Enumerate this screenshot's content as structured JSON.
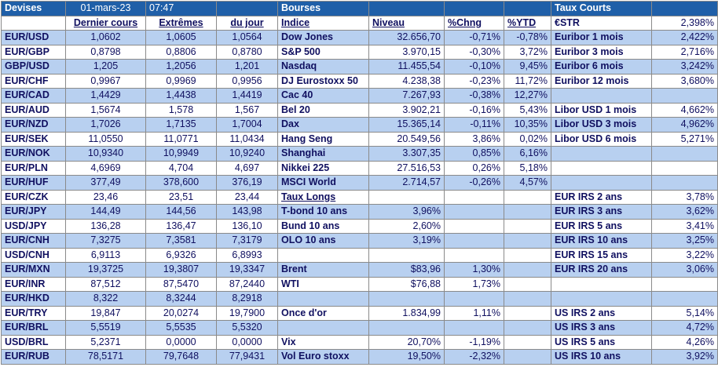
{
  "header": {
    "devises": "Devises",
    "date": "01-mars-23",
    "time": "07:47",
    "bourses": "Bourses",
    "taux_courts": "Taux Courts"
  },
  "columns": {
    "dernier_cours": "Dernier cours",
    "extremes": "Extrêmes",
    "du_jour": "du jour",
    "indice": "Indice",
    "niveau": "Niveau",
    "chng": "%Chng",
    "ytd": "%YTD"
  },
  "estr": {
    "label": "€STR",
    "value": "2,398%"
  },
  "currencies": [
    {
      "pair": "EUR/USD",
      "last": "1,0602",
      "high": "1,0605",
      "low": "1,0564"
    },
    {
      "pair": "EUR/GBP",
      "last": "0,8798",
      "high": "0,8806",
      "low": "0,8780"
    },
    {
      "pair": "GBP/USD",
      "last": "1,205",
      "high": "1,2056",
      "low": "1,201"
    },
    {
      "pair": "EUR/CHF",
      "last": "0,9967",
      "high": "0,9969",
      "low": "0,9956"
    },
    {
      "pair": "EUR/CAD",
      "last": "1,4429",
      "high": "1,4438",
      "low": "1,4419"
    },
    {
      "pair": "EUR/AUD",
      "last": "1,5674",
      "high": "1,578",
      "low": "1,567"
    },
    {
      "pair": "EUR/NZD",
      "last": "1,7026",
      "high": "1,7135",
      "low": "1,7004"
    },
    {
      "pair": "EUR/SEK",
      "last": "11,0550",
      "high": "11,0771",
      "low": "11,0434"
    },
    {
      "pair": "EUR/NOK",
      "last": "10,9340",
      "high": "10,9949",
      "low": "10,9240"
    },
    {
      "pair": "EUR/PLN",
      "last": "4,6969",
      "high": "4,704",
      "low": "4,697"
    },
    {
      "pair": "EUR/HUF",
      "last": "377,49",
      "high": "378,600",
      "low": "376,19"
    },
    {
      "pair": "EUR/CZK",
      "last": "23,46",
      "high": "23,51",
      "low": "23,44"
    },
    {
      "pair": "EUR/JPY",
      "last": "144,49",
      "high": "144,56",
      "low": "143,98"
    },
    {
      "pair": "USD/JPY",
      "last": "136,28",
      "high": "136,47",
      "low": "136,10"
    },
    {
      "pair": "EUR/CNH",
      "last": "7,3275",
      "high": "7,3581",
      "low": "7,3179"
    },
    {
      "pair": "USD/CNH",
      "last": "6,9113",
      "high": "6,9326",
      "low": "6,8993"
    },
    {
      "pair": "EUR/MXN",
      "last": "19,3725",
      "high": "19,3807",
      "low": "19,3347"
    },
    {
      "pair": "EUR/INR",
      "last": "87,512",
      "high": "87,5470",
      "low": "87,2440"
    },
    {
      "pair": "EUR/HKD",
      "last": "8,322",
      "high": "8,3244",
      "low": "8,2918"
    },
    {
      "pair": "EUR/TRY",
      "last": "19,847",
      "high": "20,0274",
      "low": "19,7900"
    },
    {
      "pair": "EUR/BRL",
      "last": "5,5519",
      "high": "5,5535",
      "low": "5,5320"
    },
    {
      "pair": "USD/BRL",
      "last": "5,2371",
      "high": "0,0000",
      "low": "0,0000"
    },
    {
      "pair": "EUR/RUB",
      "last": "78,5171",
      "high": "79,7648",
      "low": "77,9431"
    }
  ],
  "markets": [
    {
      "name": "Dow Jones",
      "level": "32.656,70",
      "chng": "-0,71%",
      "ytd": "-0,78%"
    },
    {
      "name": "S&P 500",
      "level": "3.970,15",
      "chng": "-0,30%",
      "ytd": "3,72%"
    },
    {
      "name": "Nasdaq",
      "level": "11.455,54",
      "chng": "-0,10%",
      "ytd": "9,45%"
    },
    {
      "name": "DJ Eurostoxx 50",
      "level": "4.238,38",
      "chng": "-0,23%",
      "ytd": "11,72%"
    },
    {
      "name": "Cac 40",
      "level": "7.267,93",
      "chng": "-0,38%",
      "ytd": "12,27%"
    },
    {
      "name": "Bel 20",
      "level": "3.902,21",
      "chng": "-0,16%",
      "ytd": "5,43%"
    },
    {
      "name": "Dax",
      "level": "15.365,14",
      "chng": "-0,11%",
      "ytd": "10,35%"
    },
    {
      "name": "Hang Seng",
      "level": "20.549,56",
      "chng": "3,86%",
      "ytd": "0,02%"
    },
    {
      "name": "Shanghai",
      "level": "3.307,35",
      "chng": "0,85%",
      "ytd": "6,16%"
    },
    {
      "name": "Nikkei 225",
      "level": "27.516,53",
      "chng": "0,26%",
      "ytd": "5,18%"
    },
    {
      "name": "MSCI World",
      "level": "2.714,57",
      "chng": "-0,26%",
      "ytd": "4,57%"
    },
    {
      "name": "Taux Longs",
      "level": "",
      "chng": "",
      "ytd": ""
    },
    {
      "name": "T-bond 10 ans",
      "level": "3,96%",
      "chng": "",
      "ytd": ""
    },
    {
      "name": "Bund 10 ans",
      "level": "2,60%",
      "chng": "",
      "ytd": ""
    },
    {
      "name": "OLO 10 ans",
      "level": "3,19%",
      "chng": "",
      "ytd": ""
    },
    {
      "name": "",
      "level": "",
      "chng": "",
      "ytd": ""
    },
    {
      "name": "Brent",
      "level": "$83,96",
      "chng": "1,30%",
      "ytd": ""
    },
    {
      "name": "WTI",
      "level": "$76,88",
      "chng": "1,73%",
      "ytd": ""
    },
    {
      "name": "",
      "level": "",
      "chng": "",
      "ytd": ""
    },
    {
      "name": "Once d'or",
      "level": "1.834,99",
      "chng": "1,11%",
      "ytd": ""
    },
    {
      "name": "",
      "level": "",
      "chng": "",
      "ytd": ""
    },
    {
      "name": "Vix",
      "level": "20,70%",
      "chng": "-1,19%",
      "ytd": ""
    },
    {
      "name": "Vol Euro stoxx",
      "level": "19,50%",
      "chng": "-2,32%",
      "ytd": ""
    }
  ],
  "rates": [
    {
      "name": "Euribor 1 mois",
      "value": "2,422%"
    },
    {
      "name": "Euribor 3 mois",
      "value": "2,716%"
    },
    {
      "name": "Euribor 6 mois",
      "value": "3,242%"
    },
    {
      "name": "Euribor 12 mois",
      "value": "3,680%"
    },
    {
      "name": "",
      "value": ""
    },
    {
      "name": "Libor USD 1 mois",
      "value": "4,662%"
    },
    {
      "name": "Libor USD 3 mois",
      "value": "4,962%"
    },
    {
      "name": "Libor USD 6 mois",
      "value": "5,271%"
    },
    {
      "name": "",
      "value": ""
    },
    {
      "name": "",
      "value": ""
    },
    {
      "name": "",
      "value": ""
    },
    {
      "name": "EUR IRS 2 ans",
      "value": "3,78%"
    },
    {
      "name": "EUR IRS 3 ans",
      "value": "3,62%"
    },
    {
      "name": "EUR IRS 5 ans",
      "value": "3,41%"
    },
    {
      "name": "EUR IRS 10 ans",
      "value": "3,25%"
    },
    {
      "name": "EUR IRS 15 ans",
      "value": "3,22%"
    },
    {
      "name": "EUR IRS 20 ans",
      "value": "3,06%"
    },
    {
      "name": "",
      "value": ""
    },
    {
      "name": "",
      "value": ""
    },
    {
      "name": "US IRS 2 ans",
      "value": "5,14%"
    },
    {
      "name": "US IRS 3 ans",
      "value": "4,72%"
    },
    {
      "name": "US IRS 5 ans",
      "value": "4,26%"
    },
    {
      "name": "US IRS 10 ans",
      "value": "3,92%"
    }
  ]
}
